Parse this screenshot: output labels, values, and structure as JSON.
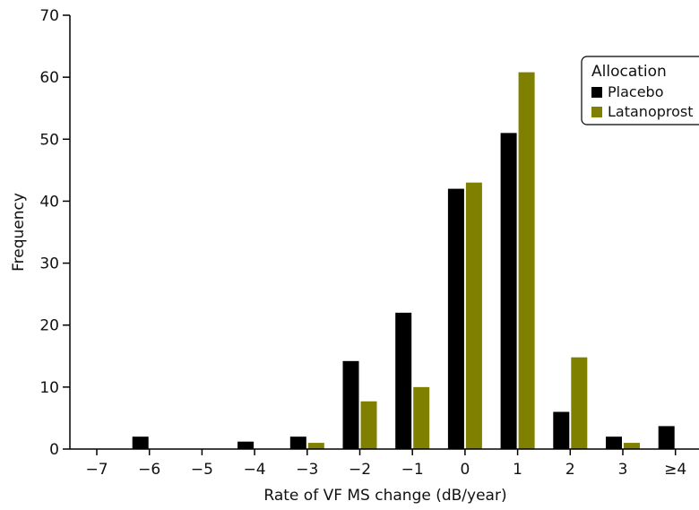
{
  "chart_data": {
    "type": "bar",
    "xlabel": "Rate of VF MS change (dB/year)",
    "ylabel": "Frequency",
    "ylim": [
      0,
      70
    ],
    "yticks": [
      0,
      10,
      20,
      30,
      40,
      50,
      60,
      70
    ],
    "categories": [
      "−7",
      "−6",
      "−5",
      "−4",
      "−3",
      "−2",
      "−1",
      "0",
      "1",
      "2",
      "3",
      "≥4"
    ],
    "series": [
      {
        "name": "Placebo",
        "color": "#000000",
        "values": [
          0,
          2,
          0,
          1.2,
          2,
          14.2,
          22,
          42,
          51,
          6,
          2,
          3.7
        ]
      },
      {
        "name": "Latanoprost",
        "color": "#808000",
        "values": [
          0,
          0,
          0,
          0,
          1,
          7.7,
          10,
          43,
          60.8,
          14.8,
          1,
          0
        ]
      }
    ],
    "legend": {
      "title": "Allocation",
      "position": "top-right"
    },
    "grid": false
  }
}
